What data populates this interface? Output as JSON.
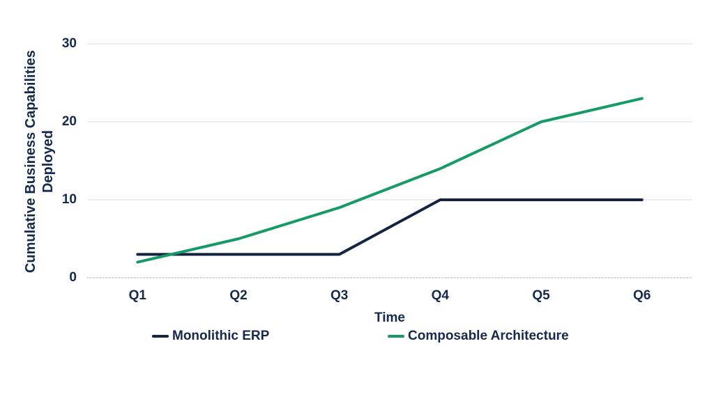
{
  "chart_data": {
    "type": "line",
    "categories": [
      "Q1",
      "Q2",
      "Q3",
      "Q4",
      "Q5",
      "Q6"
    ],
    "series": [
      {
        "name": "Monolithic ERP",
        "color": "#142440",
        "values": [
          3,
          3,
          3,
          10,
          10,
          10
        ]
      },
      {
        "name": "Composable Architecture",
        "color": "#169b68",
        "values": [
          2,
          5,
          9,
          14,
          20,
          23
        ]
      }
    ],
    "xlabel": "Time",
    "ylabel": "Cumulative Business Capabilities Deployed",
    "ylabel_lines": [
      "Cumulative Business Capabilities",
      "Deployed"
    ],
    "ylim": [
      0,
      30
    ],
    "yticks": [
      0,
      10,
      20,
      30
    ],
    "grid": "horizontal",
    "legend_position": "bottom"
  },
  "colors": {
    "text": "#15294d",
    "gridline": "#e9e9e9",
    "zero_line_dots": "#9aa4b2",
    "background": "#ffffff"
  }
}
